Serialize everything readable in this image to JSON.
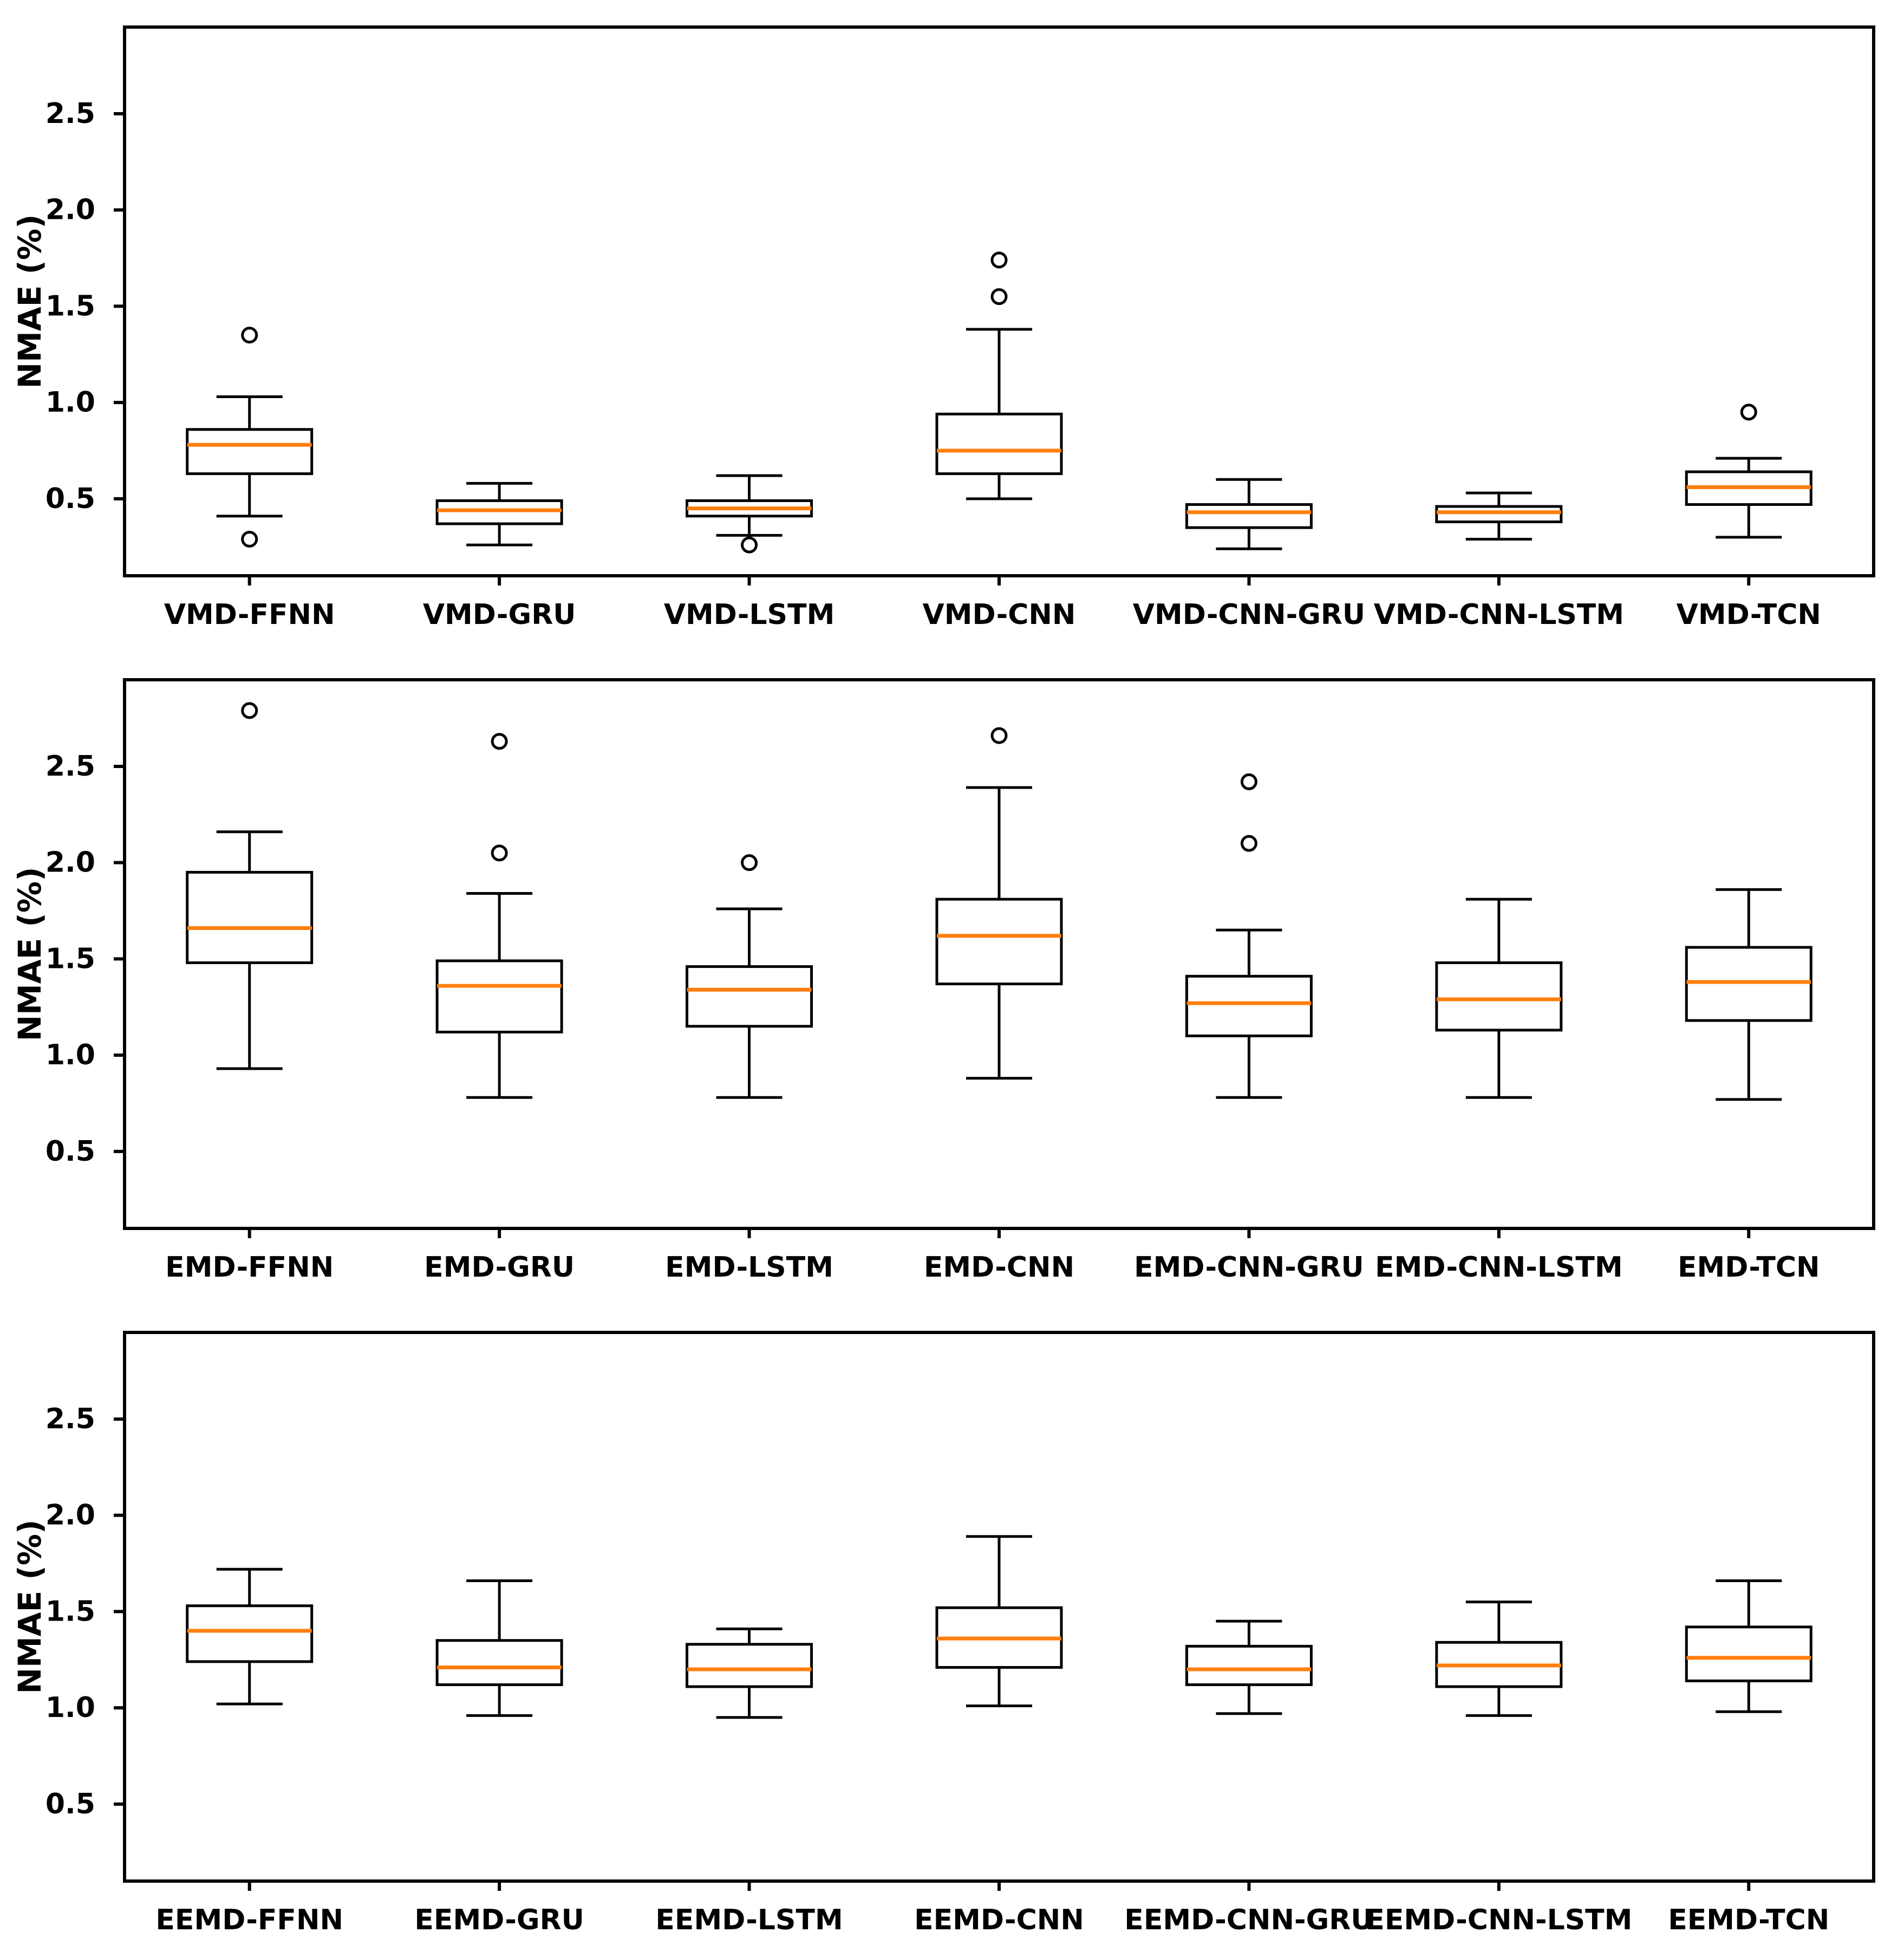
{
  "figure": {
    "background": "#ffffff",
    "line_color": "#000000",
    "median_color": "#ff7f0e",
    "text_color": "#000000"
  },
  "chart_data": [
    {
      "type": "box",
      "title": "",
      "xlabel": "",
      "ylabel": "NMAE (%)",
      "ylim": [
        0.1,
        2.95
      ],
      "yticks": [
        0.5,
        1.0,
        1.5,
        2.0,
        2.5
      ],
      "ytick_labels": [
        "0.5",
        "1.0",
        "1.5",
        "2.0",
        "2.5"
      ],
      "grid": false,
      "legend": "none",
      "categories": [
        "VMD-FFNN",
        "VMD-GRU",
        "VMD-LSTM",
        "VMD-CNN",
        "VMD-CNN-GRU",
        "VMD-CNN-LSTM",
        "VMD-TCN"
      ],
      "boxes": [
        {
          "label": "VMD-FFNN",
          "whislo": 0.41,
          "q1": 0.63,
          "med": 0.78,
          "q3": 0.86,
          "whishi": 1.03,
          "fliers": [
            1.35,
            0.29
          ]
        },
        {
          "label": "VMD-GRU",
          "whislo": 0.26,
          "q1": 0.37,
          "med": 0.44,
          "q3": 0.49,
          "whishi": 0.58,
          "fliers": []
        },
        {
          "label": "VMD-LSTM",
          "whislo": 0.31,
          "q1": 0.41,
          "med": 0.45,
          "q3": 0.49,
          "whishi": 0.62,
          "fliers": [
            0.26
          ]
        },
        {
          "label": "VMD-CNN",
          "whislo": 0.5,
          "q1": 0.63,
          "med": 0.75,
          "q3": 0.94,
          "whishi": 1.38,
          "fliers": [
            1.74,
            1.55
          ]
        },
        {
          "label": "VMD-CNN-GRU",
          "whislo": 0.24,
          "q1": 0.35,
          "med": 0.43,
          "q3": 0.47,
          "whishi": 0.6,
          "fliers": []
        },
        {
          "label": "VMD-CNN-LSTM",
          "whislo": 0.29,
          "q1": 0.38,
          "med": 0.43,
          "q3": 0.46,
          "whishi": 0.53,
          "fliers": []
        },
        {
          "label": "VMD-TCN",
          "whislo": 0.3,
          "q1": 0.47,
          "med": 0.56,
          "q3": 0.64,
          "whishi": 0.71,
          "fliers": [
            0.95
          ]
        }
      ]
    },
    {
      "type": "box",
      "title": "",
      "xlabel": "",
      "ylabel": "NMAE (%)",
      "ylim": [
        0.1,
        2.95
      ],
      "yticks": [
        0.5,
        1.0,
        1.5,
        2.0,
        2.5
      ],
      "ytick_labels": [
        "0.5",
        "1.0",
        "1.5",
        "2.0",
        "2.5"
      ],
      "grid": false,
      "legend": "none",
      "categories": [
        "EMD-FFNN",
        "EMD-GRU",
        "EMD-LSTM",
        "EMD-CNN",
        "EMD-CNN-GRU",
        "EMD-CNN-LSTM",
        "EMD-TCN"
      ],
      "boxes": [
        {
          "label": "EMD-FFNN",
          "whislo": 0.93,
          "q1": 1.48,
          "med": 1.66,
          "q3": 1.95,
          "whishi": 2.16,
          "fliers": [
            2.79
          ]
        },
        {
          "label": "EMD-GRU",
          "whislo": 0.78,
          "q1": 1.12,
          "med": 1.36,
          "q3": 1.49,
          "whishi": 1.84,
          "fliers": [
            2.63,
            2.05
          ]
        },
        {
          "label": "EMD-LSTM",
          "whislo": 0.78,
          "q1": 1.15,
          "med": 1.34,
          "q3": 1.46,
          "whishi": 1.76,
          "fliers": [
            2.0
          ]
        },
        {
          "label": "EMD-CNN",
          "whislo": 0.88,
          "q1": 1.37,
          "med": 1.62,
          "q3": 1.81,
          "whishi": 2.39,
          "fliers": [
            2.66
          ]
        },
        {
          "label": "EMD-CNN-GRU",
          "whislo": 0.78,
          "q1": 1.1,
          "med": 1.27,
          "q3": 1.41,
          "whishi": 1.65,
          "fliers": [
            2.42,
            2.1
          ]
        },
        {
          "label": "EMD-CNN-LSTM",
          "whislo": 0.78,
          "q1": 1.13,
          "med": 1.29,
          "q3": 1.48,
          "whishi": 1.81,
          "fliers": []
        },
        {
          "label": "EMD-TCN",
          "whislo": 0.77,
          "q1": 1.18,
          "med": 1.38,
          "q3": 1.56,
          "whishi": 1.86,
          "fliers": []
        }
      ]
    },
    {
      "type": "box",
      "title": "",
      "xlabel": "",
      "ylabel": "NMAE (%)",
      "ylim": [
        0.1,
        2.95
      ],
      "yticks": [
        0.5,
        1.0,
        1.5,
        2.0,
        2.5
      ],
      "ytick_labels": [
        "0.5",
        "1.0",
        "1.5",
        "2.0",
        "2.5"
      ],
      "grid": false,
      "legend": "none",
      "categories": [
        "EEMD-FFNN",
        "EEMD-GRU",
        "EEMD-LSTM",
        "EEMD-CNN",
        "EEMD-CNN-GRU",
        "EEMD-CNN-LSTM",
        "EEMD-TCN"
      ],
      "boxes": [
        {
          "label": "EEMD-FFNN",
          "whislo": 1.02,
          "q1": 1.24,
          "med": 1.4,
          "q3": 1.53,
          "whishi": 1.72,
          "fliers": []
        },
        {
          "label": "EEMD-GRU",
          "whislo": 0.96,
          "q1": 1.12,
          "med": 1.21,
          "q3": 1.35,
          "whishi": 1.66,
          "fliers": []
        },
        {
          "label": "EEMD-LSTM",
          "whislo": 0.95,
          "q1": 1.11,
          "med": 1.2,
          "q3": 1.33,
          "whishi": 1.41,
          "fliers": []
        },
        {
          "label": "EEMD-CNN",
          "whislo": 1.01,
          "q1": 1.21,
          "med": 1.36,
          "q3": 1.52,
          "whishi": 1.89,
          "fliers": []
        },
        {
          "label": "EEMD-CNN-GRU",
          "whislo": 0.97,
          "q1": 1.12,
          "med": 1.2,
          "q3": 1.32,
          "whishi": 1.45,
          "fliers": []
        },
        {
          "label": "EEMD-CNN-LSTM",
          "whislo": 0.96,
          "q1": 1.11,
          "med": 1.22,
          "q3": 1.34,
          "whishi": 1.55,
          "fliers": []
        },
        {
          "label": "EEMD-TCN",
          "whislo": 0.98,
          "q1": 1.14,
          "med": 1.26,
          "q3": 1.42,
          "whishi": 1.66,
          "fliers": []
        }
      ]
    }
  ]
}
